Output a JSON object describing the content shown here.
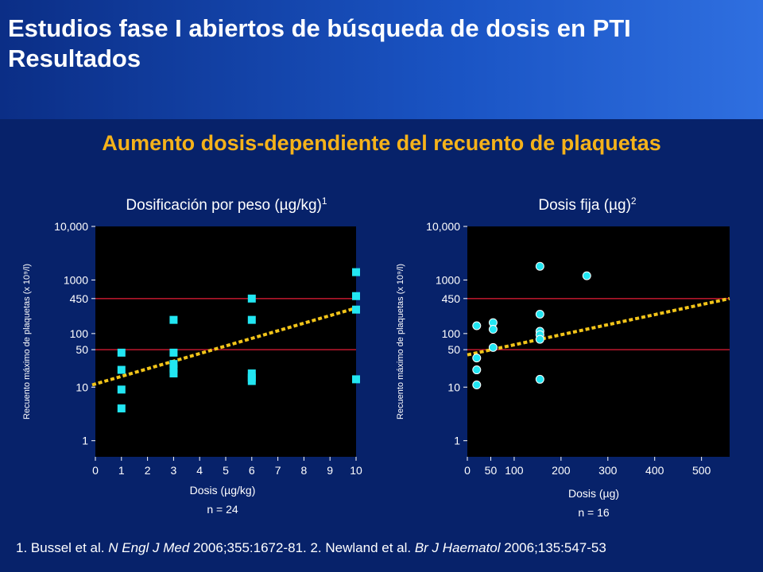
{
  "header": {
    "title_line1": "Estudios fase I abiertos de búsqueda de dosis en PTI",
    "title_line2": "Resultados"
  },
  "subtitle": "Aumento dosis-dependiente del recuento de plaquetas",
  "footer": {
    "ref1_prefix": "1. Bussel et al. ",
    "ref1_journal": "N Engl J Med",
    "ref1_rest": " 2006;355:1672-81. 2. Newland et al. ",
    "ref2_journal": "Br J Haematol",
    "ref2_rest": " 2006;135:547-53"
  },
  "colors": {
    "background": "#07226a",
    "header_gradient_end": "#2f6fe0",
    "title": "#ffffff",
    "subtitle": "#f5b21a",
    "plot_bg": "#000000",
    "point": "#22e6f2",
    "trend": "#f2c419",
    "ref_line": "#b0162b"
  },
  "chart_data": [
    {
      "type": "scatter",
      "title": "Dosificación por peso (µg/kg)",
      "title_sup": "1",
      "xlabel": "Dosis (µg/kg)",
      "n_label": "n = 24",
      "ylabel": "Recuento máximo de plaquetas (x 10⁹/l)",
      "yscale": "log",
      "xlim": [
        0,
        10
      ],
      "ylim": [
        0.5,
        10000
      ],
      "x_ticks": [
        0,
        1,
        2,
        3,
        4,
        5,
        6,
        7,
        8,
        9,
        10
      ],
      "x_tick_labels": [
        "0",
        "1",
        "2",
        "3",
        "4",
        "5",
        "6",
        "7",
        "8",
        "9",
        "10"
      ],
      "y_ticks": [
        1,
        10,
        50,
        100,
        450,
        1000,
        10000
      ],
      "y_tick_labels": [
        "1",
        "10",
        "50",
        "100",
        "450",
        "1000",
        "10,000"
      ],
      "reference_lines": [
        50,
        450
      ],
      "marker": "square",
      "points": [
        {
          "x": 1,
          "y": 44
        },
        {
          "x": 1,
          "y": 21
        },
        {
          "x": 1,
          "y": 9
        },
        {
          "x": 1,
          "y": 4
        },
        {
          "x": 3,
          "y": 180
        },
        {
          "x": 3,
          "y": 44
        },
        {
          "x": 3,
          "y": 27
        },
        {
          "x": 3,
          "y": 22
        },
        {
          "x": 3,
          "y": 18
        },
        {
          "x": 6,
          "y": 450
        },
        {
          "x": 6,
          "y": 180
        },
        {
          "x": 6,
          "y": 18
        },
        {
          "x": 6,
          "y": 15
        },
        {
          "x": 6,
          "y": 13
        },
        {
          "x": 10,
          "y": 1400
        },
        {
          "x": 10,
          "y": 500
        },
        {
          "x": 10,
          "y": 280
        },
        {
          "x": 10,
          "y": 14
        }
      ],
      "trend": {
        "from": {
          "x": 0,
          "y": 11
        },
        "to": {
          "x": 10,
          "y": 300
        }
      }
    },
    {
      "type": "scatter",
      "title": "Dosis fija (µg)",
      "title_sup": "2",
      "xlabel": "Dosis (µg)",
      "n_label": "n = 16",
      "ylabel": "Recuento máximo de plaquetas (x 10⁹/l)",
      "yscale": "log",
      "xlim": [
        0,
        560
      ],
      "ylim": [
        0.5,
        10000
      ],
      "x_ticks": [
        0,
        50,
        100,
        200,
        300,
        400,
        500
      ],
      "x_tick_labels": [
        "0",
        "50",
        "100",
        "200",
        "300",
        "400",
        "500"
      ],
      "y_ticks": [
        1,
        10,
        50,
        100,
        450,
        1000,
        10000
      ],
      "y_tick_labels": [
        "1",
        "10",
        "50",
        "100",
        "450",
        "1000",
        "10,000"
      ],
      "reference_lines": [
        50,
        450
      ],
      "marker": "circle",
      "points": [
        {
          "x": 20,
          "y": 140
        },
        {
          "x": 20,
          "y": 35
        },
        {
          "x": 20,
          "y": 21
        },
        {
          "x": 20,
          "y": 11
        },
        {
          "x": 55,
          "y": 160
        },
        {
          "x": 55,
          "y": 120
        },
        {
          "x": 55,
          "y": 55
        },
        {
          "x": 155,
          "y": 1800
        },
        {
          "x": 155,
          "y": 230
        },
        {
          "x": 155,
          "y": 110
        },
        {
          "x": 155,
          "y": 95
        },
        {
          "x": 155,
          "y": 78
        },
        {
          "x": 155,
          "y": 14
        },
        {
          "x": 255,
          "y": 1200
        }
      ],
      "trend": {
        "from": {
          "x": 0,
          "y": 40
        },
        "to": {
          "x": 560,
          "y": 450
        }
      }
    }
  ]
}
